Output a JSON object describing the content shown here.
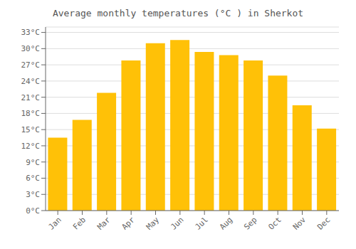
{
  "chart_data": {
    "type": "bar",
    "title": "Average monthly temperatures (°C ) in Sherkot",
    "categories": [
      "Jan",
      "Feb",
      "Mar",
      "Apr",
      "May",
      "Jun",
      "Jul",
      "Aug",
      "Sep",
      "Oct",
      "Nov",
      "Dec"
    ],
    "values": [
      13.5,
      16.8,
      21.8,
      27.8,
      31.0,
      31.6,
      29.4,
      28.8,
      27.8,
      25.0,
      19.5,
      15.2
    ],
    "color": "#FFC107",
    "ylim": [
      0,
      34
    ],
    "yticks": [
      {
        "value": 0,
        "label": "0°C"
      },
      {
        "value": 3,
        "label": "3°C"
      },
      {
        "value": 6,
        "label": "6°C"
      },
      {
        "value": 9,
        "label": "9°C"
      },
      {
        "value": 12,
        "label": "12°C"
      },
      {
        "value": 15,
        "label": "15°C"
      },
      {
        "value": 18,
        "label": "18°C"
      },
      {
        "value": 21,
        "label": "21°C"
      },
      {
        "value": 24,
        "label": "24°C"
      },
      {
        "value": 27,
        "label": "27°C"
      },
      {
        "value": 30,
        "label": "30°C"
      },
      {
        "value": 33,
        "label": "33°C"
      }
    ],
    "grid": true
  }
}
